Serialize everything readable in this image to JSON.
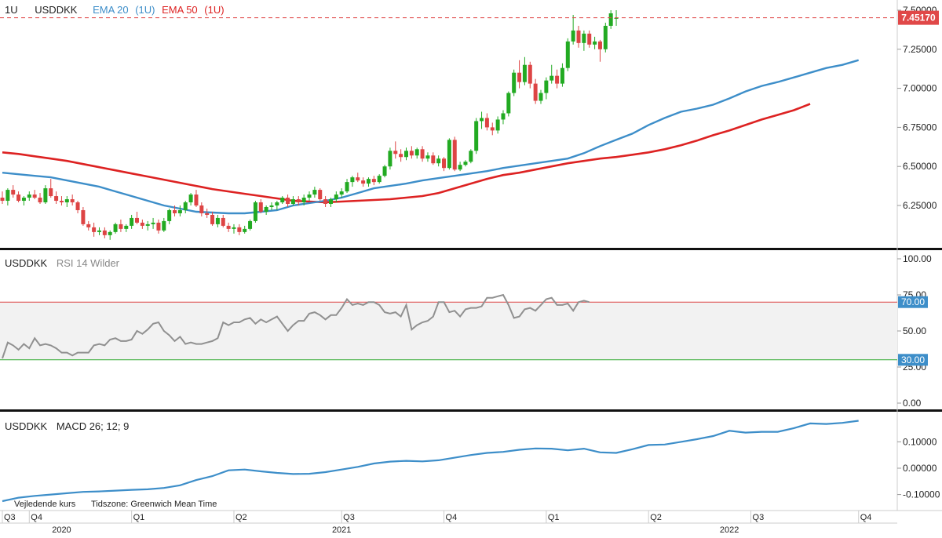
{
  "colors": {
    "up": "#22aa22",
    "down": "#dd4444",
    "ema20": "#3d8ec9",
    "ema50": "#dd2222",
    "rsi": "#909090",
    "macd": "#3d8ec9",
    "price_tag": "#e04848",
    "band_fill": "#f2f2f2",
    "rsi_upper_line": "#dd4444",
    "rsi_lower_line": "#33aa33",
    "rsi_tag": "#3d8ec9"
  },
  "price_panel": {
    "interval": "1U",
    "symbol": "USDDKK",
    "legend_ema20": "EMA 20",
    "legend_ema20_interval": "(1U)",
    "legend_ema50": "EMA 50",
    "legend_ema50_interval": "(1U)",
    "last_price": "7.45170",
    "last_value": 7.4517,
    "y_ticks": [
      {
        "value": 7.5,
        "label": "7.50000"
      },
      {
        "value": 7.25,
        "label": "7.25000"
      },
      {
        "value": 7.0,
        "label": "7.00000"
      },
      {
        "value": 6.75,
        "label": "6.75000"
      },
      {
        "value": 6.5,
        "label": "6.50000"
      },
      {
        "value": 6.25,
        "label": "6.25000"
      }
    ]
  },
  "rsi_panel": {
    "symbol": "USDDKK",
    "name": "RSI 14 Wilder",
    "upper": 70,
    "lower": 30,
    "upper_label": "70.00",
    "lower_label": "30.00",
    "y_ticks": [
      {
        "value": 100,
        "label": "100.00"
      },
      {
        "value": 75,
        "label": "75.00"
      },
      {
        "value": 50,
        "label": "50.00"
      },
      {
        "value": 25,
        "label": "25.00"
      },
      {
        "value": 0,
        "label": "0.00"
      }
    ]
  },
  "macd_panel": {
    "symbol": "USDDKK",
    "name": "MACD 26; 12; 9",
    "y_ticks": [
      {
        "value": 0.1,
        "label": "0.10000"
      },
      {
        "value": 0.0,
        "label": "0.00000"
      },
      {
        "value": -0.1,
        "label": "-0.10000"
      }
    ]
  },
  "footer": {
    "note": "Vejledende kurs",
    "timezone": "Tidszone: Greenwich Mean Time"
  },
  "time_axis": {
    "quarters": [
      "Q3",
      "Q4",
      "Q1",
      "Q2",
      "Q3",
      "Q4",
      "Q1",
      "Q2",
      "Q3",
      "Q4"
    ],
    "quarter_weeks": [
      0,
      5,
      24,
      43,
      63,
      82,
      101,
      120,
      139,
      159
    ],
    "years": [
      "2020",
      "2021",
      "2022"
    ],
    "year_weeks": [
      11,
      63,
      135
    ]
  },
  "chart_data": {
    "type": "candlestick",
    "period": "weekly",
    "weeks": [
      {
        "o": 6.3,
        "h": 6.34,
        "l": 6.26,
        "c": 6.28
      },
      {
        "o": 6.28,
        "h": 6.36,
        "l": 6.25,
        "c": 6.35
      },
      {
        "o": 6.35,
        "h": 6.38,
        "l": 6.3,
        "c": 6.32
      },
      {
        "o": 6.32,
        "h": 6.34,
        "l": 6.27,
        "c": 6.28
      },
      {
        "o": 6.28,
        "h": 6.31,
        "l": 6.25,
        "c": 6.3
      },
      {
        "o": 6.3,
        "h": 6.34,
        "l": 6.28,
        "c": 6.32
      },
      {
        "o": 6.32,
        "h": 6.35,
        "l": 6.29,
        "c": 6.3
      },
      {
        "o": 6.3,
        "h": 6.33,
        "l": 6.26,
        "c": 6.27
      },
      {
        "o": 6.27,
        "h": 6.38,
        "l": 6.26,
        "c": 6.36
      },
      {
        "o": 6.36,
        "h": 6.42,
        "l": 6.3,
        "c": 6.31
      },
      {
        "o": 6.31,
        "h": 6.34,
        "l": 6.26,
        "c": 6.28
      },
      {
        "o": 6.28,
        "h": 6.31,
        "l": 6.25,
        "c": 6.27
      },
      {
        "o": 6.27,
        "h": 6.31,
        "l": 6.24,
        "c": 6.29
      },
      {
        "o": 6.29,
        "h": 6.32,
        "l": 6.25,
        "c": 6.27
      },
      {
        "o": 6.27,
        "h": 6.28,
        "l": 6.2,
        "c": 6.22
      },
      {
        "o": 6.22,
        "h": 6.24,
        "l": 6.12,
        "c": 6.13
      },
      {
        "o": 6.13,
        "h": 6.15,
        "l": 6.09,
        "c": 6.11
      },
      {
        "o": 6.11,
        "h": 6.14,
        "l": 6.05,
        "c": 6.08
      },
      {
        "o": 6.08,
        "h": 6.11,
        "l": 6.06,
        "c": 6.09
      },
      {
        "o": 6.09,
        "h": 6.11,
        "l": 6.04,
        "c": 6.06
      },
      {
        "o": 6.06,
        "h": 6.09,
        "l": 6.03,
        "c": 6.08
      },
      {
        "o": 6.08,
        "h": 6.14,
        "l": 6.07,
        "c": 6.13
      },
      {
        "o": 6.13,
        "h": 6.16,
        "l": 6.08,
        "c": 6.1
      },
      {
        "o": 6.1,
        "h": 6.13,
        "l": 6.08,
        "c": 6.12
      },
      {
        "o": 6.12,
        "h": 6.19,
        "l": 6.1,
        "c": 6.17
      },
      {
        "o": 6.17,
        "h": 6.21,
        "l": 6.13,
        "c": 6.14
      },
      {
        "o": 6.14,
        "h": 6.16,
        "l": 6.1,
        "c": 6.12
      },
      {
        "o": 6.12,
        "h": 6.15,
        "l": 6.09,
        "c": 6.13
      },
      {
        "o": 6.13,
        "h": 6.17,
        "l": 6.1,
        "c": 6.14
      },
      {
        "o": 6.14,
        "h": 6.16,
        "l": 6.07,
        "c": 6.09
      },
      {
        "o": 6.09,
        "h": 6.17,
        "l": 6.08,
        "c": 6.15
      },
      {
        "o": 6.15,
        "h": 6.23,
        "l": 6.13,
        "c": 6.22
      },
      {
        "o": 6.22,
        "h": 6.25,
        "l": 6.18,
        "c": 6.2
      },
      {
        "o": 6.2,
        "h": 6.25,
        "l": 6.18,
        "c": 6.22
      },
      {
        "o": 6.22,
        "h": 6.28,
        "l": 6.2,
        "c": 6.27
      },
      {
        "o": 6.27,
        "h": 6.33,
        "l": 6.25,
        "c": 6.32
      },
      {
        "o": 6.32,
        "h": 6.35,
        "l": 6.24,
        "c": 6.25
      },
      {
        "o": 6.25,
        "h": 6.27,
        "l": 6.18,
        "c": 6.2
      },
      {
        "o": 6.2,
        "h": 6.23,
        "l": 6.17,
        "c": 6.19
      },
      {
        "o": 6.19,
        "h": 6.21,
        "l": 6.12,
        "c": 6.13
      },
      {
        "o": 6.13,
        "h": 6.19,
        "l": 6.11,
        "c": 6.17
      },
      {
        "o": 6.17,
        "h": 6.19,
        "l": 6.11,
        "c": 6.12
      },
      {
        "o": 6.12,
        "h": 6.14,
        "l": 6.08,
        "c": 6.1
      },
      {
        "o": 6.1,
        "h": 6.13,
        "l": 6.07,
        "c": 6.11
      },
      {
        "o": 6.11,
        "h": 6.13,
        "l": 6.06,
        "c": 6.08
      },
      {
        "o": 6.08,
        "h": 6.12,
        "l": 6.07,
        "c": 6.1
      },
      {
        "o": 6.1,
        "h": 6.16,
        "l": 6.09,
        "c": 6.15
      },
      {
        "o": 6.15,
        "h": 6.28,
        "l": 6.14,
        "c": 6.27
      },
      {
        "o": 6.27,
        "h": 6.29,
        "l": 6.2,
        "c": 6.21
      },
      {
        "o": 6.21,
        "h": 6.25,
        "l": 6.19,
        "c": 6.24
      },
      {
        "o": 6.24,
        "h": 6.27,
        "l": 6.22,
        "c": 6.25
      },
      {
        "o": 6.25,
        "h": 6.28,
        "l": 6.22,
        "c": 6.27
      },
      {
        "o": 6.27,
        "h": 6.31,
        "l": 6.26,
        "c": 6.3
      },
      {
        "o": 6.3,
        "h": 6.32,
        "l": 6.24,
        "c": 6.26
      },
      {
        "o": 6.26,
        "h": 6.31,
        "l": 6.25,
        "c": 6.29
      },
      {
        "o": 6.29,
        "h": 6.31,
        "l": 6.25,
        "c": 6.27
      },
      {
        "o": 6.27,
        "h": 6.32,
        "l": 6.25,
        "c": 6.3
      },
      {
        "o": 6.3,
        "h": 6.34,
        "l": 6.28,
        "c": 6.32
      },
      {
        "o": 6.32,
        "h": 6.37,
        "l": 6.3,
        "c": 6.35
      },
      {
        "o": 6.35,
        "h": 6.36,
        "l": 6.28,
        "c": 6.29
      },
      {
        "o": 6.29,
        "h": 6.31,
        "l": 6.24,
        "c": 6.26
      },
      {
        "o": 6.26,
        "h": 6.3,
        "l": 6.24,
        "c": 6.29
      },
      {
        "o": 6.29,
        "h": 6.34,
        "l": 6.27,
        "c": 6.32
      },
      {
        "o": 6.32,
        "h": 6.36,
        "l": 6.3,
        "c": 6.34
      },
      {
        "o": 6.34,
        "h": 6.42,
        "l": 6.33,
        "c": 6.4
      },
      {
        "o": 6.4,
        "h": 6.44,
        "l": 6.37,
        "c": 6.43
      },
      {
        "o": 6.43,
        "h": 6.46,
        "l": 6.4,
        "c": 6.41
      },
      {
        "o": 6.41,
        "h": 6.43,
        "l": 6.37,
        "c": 6.39
      },
      {
        "o": 6.39,
        "h": 6.43,
        "l": 6.37,
        "c": 6.42
      },
      {
        "o": 6.42,
        "h": 6.44,
        "l": 6.38,
        "c": 6.4
      },
      {
        "o": 6.4,
        "h": 6.45,
        "l": 6.39,
        "c": 6.44
      },
      {
        "o": 6.44,
        "h": 6.51,
        "l": 6.43,
        "c": 6.5
      },
      {
        "o": 6.5,
        "h": 6.62,
        "l": 6.48,
        "c": 6.6
      },
      {
        "o": 6.6,
        "h": 6.66,
        "l": 6.55,
        "c": 6.58
      },
      {
        "o": 6.58,
        "h": 6.61,
        "l": 6.53,
        "c": 6.56
      },
      {
        "o": 6.56,
        "h": 6.62,
        "l": 6.54,
        "c": 6.6
      },
      {
        "o": 6.6,
        "h": 6.63,
        "l": 6.55,
        "c": 6.57
      },
      {
        "o": 6.57,
        "h": 6.62,
        "l": 6.55,
        "c": 6.61
      },
      {
        "o": 6.61,
        "h": 6.63,
        "l": 6.53,
        "c": 6.55
      },
      {
        "o": 6.55,
        "h": 6.59,
        "l": 6.53,
        "c": 6.57
      },
      {
        "o": 6.57,
        "h": 6.59,
        "l": 6.51,
        "c": 6.52
      },
      {
        "o": 6.52,
        "h": 6.57,
        "l": 6.5,
        "c": 6.55
      },
      {
        "o": 6.55,
        "h": 6.56,
        "l": 6.47,
        "c": 6.49
      },
      {
        "o": 6.49,
        "h": 6.68,
        "l": 6.48,
        "c": 6.67
      },
      {
        "o": 6.67,
        "h": 6.69,
        "l": 6.47,
        "c": 6.48
      },
      {
        "o": 6.48,
        "h": 6.53,
        "l": 6.47,
        "c": 6.51
      },
      {
        "o": 6.51,
        "h": 6.54,
        "l": 6.5,
        "c": 6.53
      },
      {
        "o": 6.53,
        "h": 6.61,
        "l": 6.52,
        "c": 6.6
      },
      {
        "o": 6.6,
        "h": 6.81,
        "l": 6.58,
        "c": 6.79
      },
      {
        "o": 6.79,
        "h": 6.85,
        "l": 6.74,
        "c": 6.81
      },
      {
        "o": 6.81,
        "h": 6.84,
        "l": 6.73,
        "c": 6.75
      },
      {
        "o": 6.75,
        "h": 6.78,
        "l": 6.7,
        "c": 6.73
      },
      {
        "o": 6.73,
        "h": 6.82,
        "l": 6.71,
        "c": 6.8
      },
      {
        "o": 6.8,
        "h": 6.86,
        "l": 6.77,
        "c": 6.84
      },
      {
        "o": 6.84,
        "h": 6.98,
        "l": 6.82,
        "c": 6.97
      },
      {
        "o": 6.97,
        "h": 7.12,
        "l": 6.95,
        "c": 7.1
      },
      {
        "o": 7.1,
        "h": 7.18,
        "l": 7.0,
        "c": 7.04
      },
      {
        "o": 7.04,
        "h": 7.2,
        "l": 7.02,
        "c": 7.15
      },
      {
        "o": 7.15,
        "h": 7.17,
        "l": 7.0,
        "c": 7.03
      },
      {
        "o": 7.03,
        "h": 7.06,
        "l": 6.9,
        "c": 6.92
      },
      {
        "o": 6.92,
        "h": 6.99,
        "l": 6.9,
        "c": 6.97
      },
      {
        "o": 6.97,
        "h": 7.07,
        "l": 6.93,
        "c": 7.05
      },
      {
        "o": 7.05,
        "h": 7.15,
        "l": 7.03,
        "c": 7.08
      },
      {
        "o": 7.08,
        "h": 7.12,
        "l": 7.0,
        "c": 7.03
      },
      {
        "o": 7.03,
        "h": 7.16,
        "l": 7.01,
        "c": 7.13
      },
      {
        "o": 7.13,
        "h": 7.32,
        "l": 7.11,
        "c": 7.3
      },
      {
        "o": 7.3,
        "h": 7.47,
        "l": 7.28,
        "c": 7.37
      },
      {
        "o": 7.37,
        "h": 7.4,
        "l": 7.26,
        "c": 7.29
      },
      {
        "o": 7.29,
        "h": 7.37,
        "l": 7.24,
        "c": 7.35
      },
      {
        "o": 7.35,
        "h": 7.37,
        "l": 7.26,
        "c": 7.28
      },
      {
        "o": 7.28,
        "h": 7.33,
        "l": 7.25,
        "c": 7.3
      },
      {
        "o": 7.3,
        "h": 7.31,
        "l": 7.17,
        "c": 7.25
      },
      {
        "o": 7.25,
        "h": 7.42,
        "l": 7.23,
        "c": 7.4
      },
      {
        "o": 7.4,
        "h": 7.5,
        "l": 7.38,
        "c": 7.48
      },
      {
        "o": 7.45,
        "h": 7.5,
        "l": 7.4,
        "c": 7.45
      }
    ],
    "ema20": [
      6.46,
      6.45,
      6.44,
      6.43,
      6.41,
      6.39,
      6.37,
      6.34,
      6.31,
      6.28,
      6.25,
      6.23,
      6.21,
      6.205,
      6.2,
      6.2,
      6.21,
      6.22,
      6.25,
      6.265,
      6.28,
      6.3,
      6.33,
      6.36,
      6.375,
      6.39,
      6.41,
      6.425,
      6.44,
      6.455,
      6.47,
      6.49,
      6.505,
      6.52,
      6.535,
      6.55,
      6.585,
      6.63,
      6.67,
      6.71,
      6.765,
      6.81,
      6.85,
      6.87,
      6.895,
      6.935,
      6.98,
      7.015,
      7.04,
      7.07,
      7.1,
      7.13,
      7.15,
      7.18
    ],
    "ema20_weeks": [
      0,
      3,
      6,
      9,
      12,
      15,
      18,
      21,
      24,
      27,
      30,
      33,
      36,
      39,
      42,
      45,
      48,
      51,
      54,
      57,
      60,
      63,
      66,
      69,
      72,
      75,
      78,
      81,
      84,
      87,
      90,
      93,
      96,
      99,
      102,
      105,
      108,
      111,
      114,
      117,
      120,
      123,
      126,
      129,
      132,
      135,
      138,
      141,
      144,
      147,
      150,
      153,
      156,
      159
    ],
    "ema50": [
      6.59,
      6.58,
      6.565,
      6.55,
      6.535,
      6.515,
      6.495,
      6.475,
      6.455,
      6.435,
      6.415,
      6.395,
      6.375,
      6.355,
      6.34,
      6.325,
      6.31,
      6.295,
      6.28,
      6.275,
      6.27,
      6.275,
      6.28,
      6.285,
      6.29,
      6.3,
      6.31,
      6.33,
      6.36,
      6.39,
      6.42,
      6.445,
      6.46,
      6.48,
      6.5,
      6.52,
      6.535,
      6.55,
      6.56,
      6.575,
      6.59,
      6.61,
      6.635,
      6.665,
      6.7,
      6.73,
      6.765,
      6.8,
      6.83,
      6.86,
      6.9
    ],
    "ema50_weeks": [
      0,
      3,
      6,
      9,
      12,
      15,
      18,
      21,
      24,
      27,
      30,
      33,
      36,
      39,
      42,
      45,
      48,
      51,
      54,
      57,
      60,
      63,
      66,
      69,
      72,
      75,
      78,
      81,
      84,
      87,
      90,
      93,
      96,
      99,
      102,
      105,
      108,
      111,
      114,
      117,
      120,
      123,
      126,
      129,
      132,
      135,
      138,
      141,
      144,
      147,
      150
    ],
    "rsi": [
      31,
      42,
      40,
      37,
      41,
      38,
      45,
      40,
      41,
      40,
      38,
      35,
      35,
      33,
      35,
      35,
      35,
      40,
      41,
      40,
      44,
      45,
      43,
      43,
      44,
      50,
      48,
      51,
      55,
      56,
      50,
      47,
      43,
      46,
      41,
      42,
      41,
      41,
      42,
      43,
      45,
      56,
      54,
      56,
      56,
      58,
      59,
      55,
      58,
      56,
      58,
      60,
      55,
      50,
      54,
      57,
      57,
      62,
      63,
      61,
      58,
      61,
      61,
      66,
      72,
      68,
      69,
      68,
      70,
      70,
      68,
      63,
      62,
      63,
      60,
      68,
      51,
      54,
      56,
      57,
      60,
      70,
      70,
      63,
      64,
      60,
      65,
      66,
      66,
      67,
      73,
      73,
      74,
      75,
      68,
      59,
      60,
      65,
      66,
      64,
      68,
      72,
      73,
      68,
      68,
      69,
      64,
      70,
      71,
      70
    ],
    "macd": [
      -0.125,
      -0.112,
      -0.105,
      -0.1,
      -0.095,
      -0.09,
      -0.088,
      -0.085,
      -0.082,
      -0.08,
      -0.075,
      -0.065,
      -0.045,
      -0.03,
      -0.008,
      -0.005,
      -0.012,
      -0.018,
      -0.022,
      -0.021,
      -0.015,
      -0.005,
      0.005,
      0.018,
      0.025,
      0.028,
      0.026,
      0.03,
      0.04,
      0.05,
      0.058,
      0.062,
      0.07,
      0.075,
      0.074,
      0.068,
      0.074,
      0.06,
      0.058,
      0.072,
      0.088,
      0.09,
      0.1,
      0.11,
      0.122,
      0.142,
      0.135,
      0.138,
      0.138,
      0.152,
      0.17,
      0.168,
      0.172,
      0.18
    ],
    "macd_weeks": [
      0,
      3,
      6,
      9,
      12,
      15,
      18,
      21,
      24,
      27,
      30,
      33,
      36,
      39,
      42,
      45,
      48,
      51,
      54,
      57,
      60,
      63,
      66,
      69,
      72,
      75,
      78,
      81,
      84,
      87,
      90,
      93,
      96,
      99,
      102,
      105,
      108,
      111,
      114,
      117,
      120,
      123,
      126,
      129,
      132,
      135,
      138,
      141,
      144,
      147,
      150,
      153,
      156,
      159
    ]
  }
}
